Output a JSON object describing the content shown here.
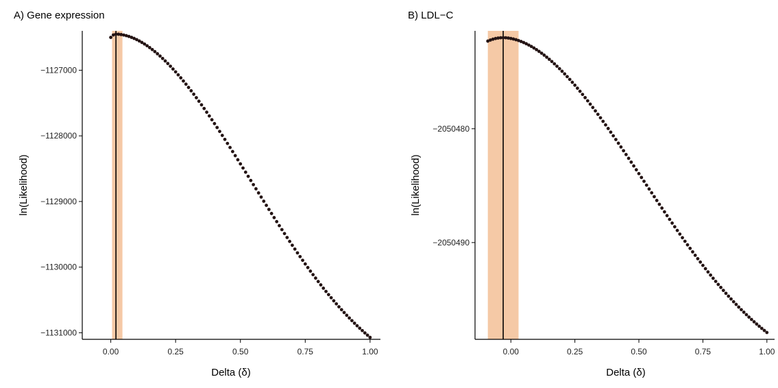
{
  "chart_data": [
    {
      "type": "scatter",
      "title": "A) Gene expression",
      "xlabel": "Delta (δ)",
      "ylabel": "ln(Likelihood)",
      "x_ticks": [
        0.0,
        0.25,
        0.5,
        0.75,
        1.0
      ],
      "x_tick_labels": [
        "0.00",
        "0.25",
        "0.50",
        "0.75",
        "1.00"
      ],
      "y_ticks": [
        -1127000,
        -1128000,
        -1129000,
        -1130000,
        -1131000
      ],
      "y_tick_labels": [
        "−1127000",
        "−1128000",
        "−1129000",
        "−1130000",
        "−1131000"
      ],
      "xlim": [
        -0.11,
        1.04
      ],
      "ylim": [
        -1131100,
        -1126400
      ],
      "ci_band": [
        0.005,
        0.045
      ],
      "mle_line": 0.02,
      "curve": {
        "x_start": 0.0,
        "x_end": 1.0,
        "n_points": 101,
        "peak_x": 0.02,
        "y_peak": -1126450,
        "y_end": -1131070,
        "y_start": -1126500
      },
      "colors": {
        "points": "#241414",
        "band": "#f5c9a6",
        "line": "#000000"
      }
    },
    {
      "type": "scatter",
      "title": "B) LDL−C",
      "xlabel": "Delta (δ)",
      "ylabel": "ln(Likelihood)",
      "x_ticks": [
        0.0,
        0.25,
        0.5,
        0.75,
        1.0
      ],
      "x_tick_labels": [
        "0.00",
        "0.25",
        "0.50",
        "0.75",
        "1.00"
      ],
      "y_ticks": [
        -2050480,
        -2050490
      ],
      "y_tick_labels": [
        "−2050480",
        "−2050490"
      ],
      "xlim": [
        -0.14,
        1.03
      ],
      "ylim": [
        -2050498.5,
        -2050471.4
      ],
      "ci_band": [
        -0.09,
        0.03
      ],
      "mle_line": -0.03,
      "curve": {
        "x_start": -0.09,
        "x_end": 1.0,
        "n_points": 110,
        "peak_x": -0.03,
        "y_peak": -2050472.0,
        "y_end": -2050497.9,
        "y_start": -2050472.3
      },
      "colors": {
        "points": "#241414",
        "band": "#f5c9a6",
        "line": "#000000"
      }
    }
  ]
}
